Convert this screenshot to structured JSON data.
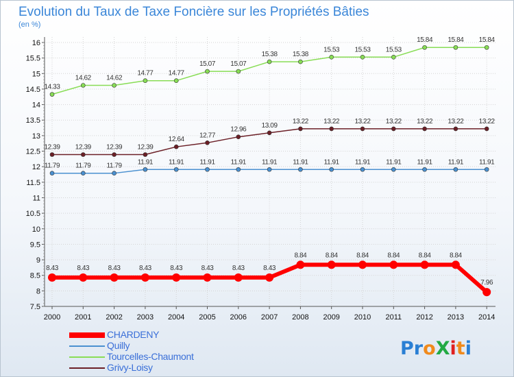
{
  "chart_data": {
    "type": "line",
    "title": "Evolution du Taux de Taxe Foncière sur les Propriétés Bâties",
    "subtitle": "(en %)",
    "xlabel": "",
    "ylabel": "",
    "x": [
      "2000",
      "2001",
      "2002",
      "2003",
      "2004",
      "2005",
      "2006",
      "2007",
      "2008",
      "2009",
      "2010",
      "2011",
      "2012",
      "2013",
      "2014"
    ],
    "ylim": [
      7.5,
      16
    ],
    "yticks": [
      "7.5",
      "8",
      "8.5",
      "9",
      "9.5",
      "10",
      "10.5",
      "11",
      "11.5",
      "12",
      "12.5",
      "13",
      "13.5",
      "14",
      "14.5",
      "15",
      "15.5",
      "16"
    ],
    "grid": true,
    "legend_position": "bottom-left",
    "series": [
      {
        "name": "CHARDENY",
        "color": "#ff0000",
        "values": [
          8.43,
          8.43,
          8.43,
          8.43,
          8.43,
          8.43,
          8.43,
          8.43,
          8.84,
          8.84,
          8.84,
          8.84,
          8.84,
          8.84,
          7.96
        ],
        "labels": [
          "8.43",
          "8.43",
          "8.43",
          "8.43",
          "8.43",
          "8.43",
          "8.43",
          "8.43",
          "8.84",
          "8.84",
          "8.84",
          "8.84",
          "8.84",
          "8.84",
          "7.96"
        ]
      },
      {
        "name": "Quilly",
        "color": "#4a90d0",
        "values": [
          11.79,
          11.79,
          11.79,
          11.91,
          11.91,
          11.91,
          11.91,
          11.91,
          11.91,
          11.91,
          11.91,
          11.91,
          11.91,
          11.91,
          11.91
        ],
        "labels": [
          "11.79",
          "11.79",
          "11.79",
          "11.91",
          "11.91",
          "11.91",
          "11.91",
          "11.91",
          "11.91",
          "11.91",
          "11.91",
          "11.91",
          "11.91",
          "11.91",
          "11.91"
        ]
      },
      {
        "name": "Tourcelles-Chaumont",
        "color": "#88dd55",
        "values": [
          14.33,
          14.62,
          14.62,
          14.77,
          14.77,
          15.07,
          15.07,
          15.38,
          15.38,
          15.53,
          15.53,
          15.53,
          15.84,
          15.84,
          15.84
        ],
        "labels": [
          "14.33",
          "14.62",
          "14.62",
          "14.77",
          "14.77",
          "15.07",
          "15.07",
          "15.38",
          "15.38",
          "15.53",
          "15.53",
          "15.53",
          "15.84",
          "15.84",
          "15.84"
        ]
      },
      {
        "name": "Grivy-Loisy",
        "color": "#6b1f26",
        "values": [
          12.39,
          12.39,
          12.39,
          12.39,
          12.64,
          12.77,
          12.96,
          13.09,
          13.22,
          13.22,
          13.22,
          13.22,
          13.22,
          13.22,
          13.22
        ],
        "labels": [
          "12.39",
          "12.39",
          "12.39",
          "12.39",
          "12.64",
          "12.77",
          "12.96",
          "13.09",
          "13.22",
          "13.22",
          "13.22",
          "13.22",
          "13.22",
          "13.22",
          "13.22"
        ]
      }
    ],
    "watermark": "ProXiti"
  }
}
